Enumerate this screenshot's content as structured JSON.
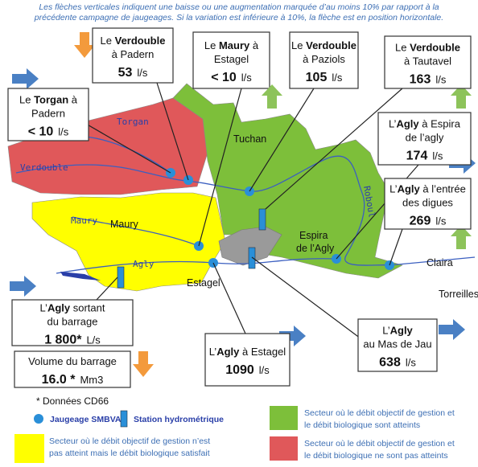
{
  "header": {
    "lines": [
      "Les flèches verticales indiquent une baisse ou une augmentation marquée d’au moins 10% par rapport à la",
      "précédente campagne de jaugeages. Si la variation est inférieure à 10%, la flèche est en position horizontale."
    ]
  },
  "stations": [
    {
      "lines": [
        {
          "pre": "Le ",
          "bold": "Verdouble"
        },
        {
          "pre": "à Padern"
        }
      ],
      "value": "53",
      "unit": "l/s",
      "arrow": "down",
      "arrow_color": "#f39a3c"
    },
    {
      "lines": [
        {
          "pre": "Le ",
          "bold": "Maury",
          "post": " à"
        },
        {
          "pre": "Estagel"
        }
      ],
      "value": "< 10",
      "unit": "l/s"
    },
    {
      "lines": [
        {
          "pre": "Le ",
          "bold": "Verdouble"
        },
        {
          "pre": "à Paziols"
        }
      ],
      "value": "105",
      "unit": "l/s",
      "arrow": "up",
      "arrow_color": "#8dc35a"
    },
    {
      "lines": [
        {
          "pre": "Le ",
          "bold": "Verdouble"
        },
        {
          "pre": "à Tautavel"
        }
      ],
      "value": "163",
      "unit": "l/s",
      "arrow": "up",
      "arrow_color": "#8dc35a"
    },
    {
      "lines": [
        {
          "pre": "Le ",
          "bold": "Torgan",
          "post": " à"
        },
        {
          "pre": "Padern"
        }
      ],
      "value": "< 10",
      "unit": "l/s",
      "arrow": "right",
      "arrow_color": "#4a80c4"
    },
    {
      "lines": [
        {
          "pre": "L’",
          "bold": "Agly",
          "post": " à Espira"
        },
        {
          "pre": "de l’agly"
        }
      ],
      "value": "174",
      "unit": "l/s",
      "arrow": "right",
      "arrow_color": "#4a80c4"
    },
    {
      "lines": [
        {
          "pre": "L’",
          "bold": "Agly",
          "post": " à l’entrée"
        },
        {
          "pre": "des digues"
        }
      ],
      "value": "269",
      "unit": "l/s",
      "arrow": "up",
      "arrow_color": "#8dc35a"
    },
    {
      "lines": [
        {
          "pre": "L’",
          "bold": "Agly",
          "post": "  sortant"
        },
        {
          "pre": "du barrage"
        }
      ],
      "value": "1 800*",
      "unit": "L/s",
      "arrow": "right",
      "arrow_color": "#4a80c4"
    },
    {
      "lines": [
        {
          "pre": "Volume  du barrage"
        }
      ],
      "value": "16.0 *",
      "unit": "Mm3",
      "arrow": "down",
      "arrow_color": "#f39a3c"
    },
    {
      "lines": [
        {
          "pre": "L’",
          "bold": "Agly",
          "post": " à Estagel"
        }
      ],
      "value": "1090",
      "unit": "l/s",
      "arrow": "right",
      "arrow_color": "#4a80c4"
    },
    {
      "lines": [
        {
          "pre": "L’",
          "bold": "Agly"
        },
        {
          "pre": "au Mas de Jau"
        }
      ],
      "value": "638",
      "unit": "l/s",
      "arrow": "right",
      "arrow_color": "#4a80c4"
    }
  ],
  "map_labels": {
    "rivers": [
      "Torgan",
      "Verdouble",
      "Maury",
      "Agly",
      "Roboul"
    ],
    "towns": [
      "Tuchan",
      "Maury",
      "Estagel",
      "Espira",
      "de l’Agly",
      "Claira",
      "Torreilles"
    ]
  },
  "legend": {
    "note": "* Données CD66",
    "gauging": "Jaugeage SMBVA",
    "station": "Station hydrométrique",
    "sectors": [
      {
        "color": "#7dbf3a",
        "lines": [
          "Secteur où le débit objectif de gestion et",
          "le débit biologique sont atteints"
        ]
      },
      {
        "color": "#ffff00",
        "lines": [
          "Secteur où le débit objectif de gestion n’est",
          "pas atteint mais le débit biologique satisfait"
        ]
      },
      {
        "color": "#e0585a",
        "lines": [
          "Secteur où le débit objectif de gestion et",
          "le débit biologique ne sont pas atteints"
        ]
      }
    ]
  }
}
